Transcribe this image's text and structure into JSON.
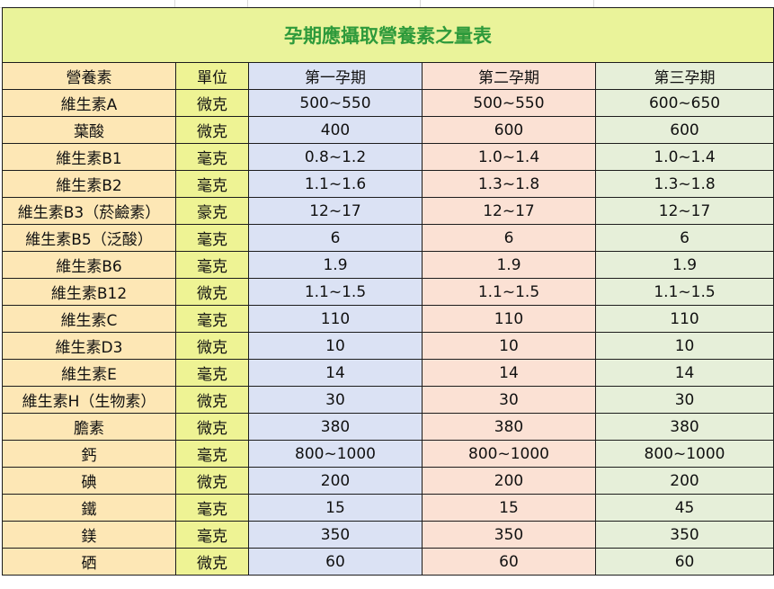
{
  "table": {
    "title": "孕期應攝取營養素之量表",
    "headers": [
      "營養素",
      "單位",
      "第一孕期",
      "第二孕期",
      "第三孕期"
    ],
    "rows": [
      {
        "name": "維生素A",
        "unit": "微克",
        "t1": "500~550",
        "t2": "500~550",
        "t3": "600~650"
      },
      {
        "name": "葉酸",
        "unit": "微克",
        "t1": "400",
        "t2": "600",
        "t3": "600"
      },
      {
        "name": "維生素B1",
        "unit": "毫克",
        "t1": "0.8~1.2",
        "t2": "1.0~1.4",
        "t3": "1.0~1.4"
      },
      {
        "name": "維生素B2",
        "unit": "毫克",
        "t1": "1.1~1.6",
        "t2": "1.3~1.8",
        "t3": "1.3~1.8"
      },
      {
        "name": "維生素B3（菸鹼素）",
        "unit": "豪克",
        "t1": "12~17",
        "t2": "12~17",
        "t3": "12~17"
      },
      {
        "name": "維生素B5（泛酸）",
        "unit": "毫克",
        "t1": "6",
        "t2": "6",
        "t3": "6"
      },
      {
        "name": "維生素B6",
        "unit": "毫克",
        "t1": "1.9",
        "t2": "1.9",
        "t3": "1.9"
      },
      {
        "name": "維生素B12",
        "unit": "微克",
        "t1": "1.1~1.5",
        "t2": "1.1~1.5",
        "t3": "1.1~1.5"
      },
      {
        "name": "維生素C",
        "unit": "毫克",
        "t1": "110",
        "t2": "110",
        "t3": "110"
      },
      {
        "name": "維生素D3",
        "unit": "微克",
        "t1": "10",
        "t2": "10",
        "t3": "10"
      },
      {
        "name": "維生素E",
        "unit": "毫克",
        "t1": "14",
        "t2": "14",
        "t3": "14"
      },
      {
        "name": "維生素H（生物素）",
        "unit": "微克",
        "t1": "30",
        "t2": "30",
        "t3": "30"
      },
      {
        "name": "膽素",
        "unit": "微克",
        "t1": "380",
        "t2": "380",
        "t3": "380"
      },
      {
        "name": "鈣",
        "unit": "毫克",
        "t1": "800~1000",
        "t2": "800~1000",
        "t3": "800~1000"
      },
      {
        "name": "碘",
        "unit": "微克",
        "t1": "200",
        "t2": "200",
        "t3": "200"
      },
      {
        "name": "鐵",
        "unit": "毫克",
        "t1": "15",
        "t2": "15",
        "t3": "45"
      },
      {
        "name": "鎂",
        "unit": "毫克",
        "t1": "350",
        "t2": "350",
        "t3": "350"
      },
      {
        "name": "硒",
        "unit": "微克",
        "t1": "60",
        "t2": "60",
        "t3": "60"
      }
    ]
  },
  "colors": {
    "title_bg": "#eaf39a",
    "title_text": "#2e9a3b",
    "col_name_bg": "#fde7b5",
    "col_unit_bg": "#eef394",
    "col_t1_bg": "#dbe2f4",
    "col_t2_bg": "#fbe1d4",
    "col_t3_bg": "#e6efd9"
  }
}
